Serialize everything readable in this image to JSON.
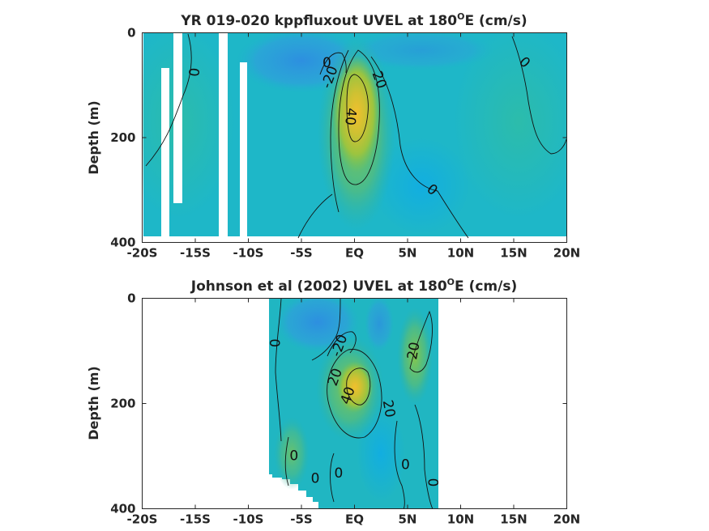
{
  "figure": {
    "colors": {
      "axes": "#262626",
      "contour": "#111111"
    }
  },
  "chart_data": [
    {
      "type": "heatmap",
      "title": "YR 019-020 kppfluxout UVEL at 180",
      "title_sup": "O",
      "title_tail": "E (cm/s)",
      "ylabel": "Depth (m)",
      "xlabel": "",
      "x_ticks": [
        "-20S",
        "-15S",
        "-10S",
        "-5S",
        "EQ",
        "5N",
        "10N",
        "15N",
        "20N"
      ],
      "x_tick_values": [
        -20,
        -15,
        -10,
        -5,
        0,
        5,
        10,
        15,
        20
      ],
      "y_ticks": [
        "0",
        "200",
        "400"
      ],
      "y_tick_values": [
        0,
        200,
        400
      ],
      "xlim": [
        -20,
        20
      ],
      "ylim": [
        400,
        0
      ],
      "grid": false,
      "legend": "none",
      "colormap": "parula",
      "contour_levels": [
        -20,
        0,
        20,
        40
      ],
      "contour_labels": [
        {
          "text": "0",
          "lat": -15.2,
          "depth": 75,
          "angle": 95
        },
        {
          "text": "0",
          "lat": -2.6,
          "depth": 58,
          "angle": 0
        },
        {
          "text": "-20",
          "lat": -2.3,
          "depth": 85,
          "angle": -70
        },
        {
          "text": "20",
          "lat": 2.3,
          "depth": 90,
          "angle": 70
        },
        {
          "text": "40",
          "lat": -0.4,
          "depth": 160,
          "angle": 95
        },
        {
          "text": "0",
          "lat": 7.3,
          "depth": 300,
          "angle": 40
        },
        {
          "text": "0",
          "lat": 16.0,
          "depth": 57,
          "angle": 45
        }
      ]
    },
    {
      "type": "heatmap",
      "title": "Johnson et al (2002) UVEL at 180",
      "title_sup": "O",
      "title_tail": "E (cm/s)",
      "ylabel": "Depth (m)",
      "xlabel": "",
      "x_ticks": [
        "-20S",
        "-15S",
        "-10S",
        "-5S",
        "EQ",
        "5N",
        "10N",
        "15N",
        "20N"
      ],
      "x_tick_values": [
        -20,
        -15,
        -10,
        -5,
        0,
        5,
        10,
        15,
        20
      ],
      "y_ticks": [
        "0",
        "200",
        "400"
      ],
      "y_tick_values": [
        0,
        200,
        400
      ],
      "xlim": [
        -20,
        20
      ],
      "ylim": [
        400,
        0
      ],
      "data_lat_range": [
        -8,
        8
      ],
      "grid": false,
      "legend": "none",
      "colormap": "parula",
      "contour_levels": [
        -20,
        0,
        20,
        40
      ],
      "contour_labels": [
        {
          "text": "0",
          "lat": -7.4,
          "depth": 85,
          "angle": -90
        },
        {
          "text": "-20",
          "lat": -1.4,
          "depth": 90,
          "angle": -70
        },
        {
          "text": "20",
          "lat": 5.6,
          "depth": 100,
          "angle": -80
        },
        {
          "text": "20",
          "lat": -1.8,
          "depth": 150,
          "angle": -70
        },
        {
          "text": "40",
          "lat": -0.6,
          "depth": 185,
          "angle": -70
        },
        {
          "text": "20",
          "lat": 3.2,
          "depth": 210,
          "angle": 80
        },
        {
          "text": "0",
          "lat": -5.7,
          "depth": 300,
          "angle": 0
        },
        {
          "text": "0",
          "lat": -1.5,
          "depth": 333,
          "angle": 0
        },
        {
          "text": "0",
          "lat": -3.7,
          "depth": 343,
          "angle": 0
        },
        {
          "text": "0",
          "lat": 4.8,
          "depth": 317,
          "angle": 0
        },
        {
          "text": "0",
          "lat": 7.5,
          "depth": 350,
          "angle": -90
        }
      ]
    }
  ]
}
